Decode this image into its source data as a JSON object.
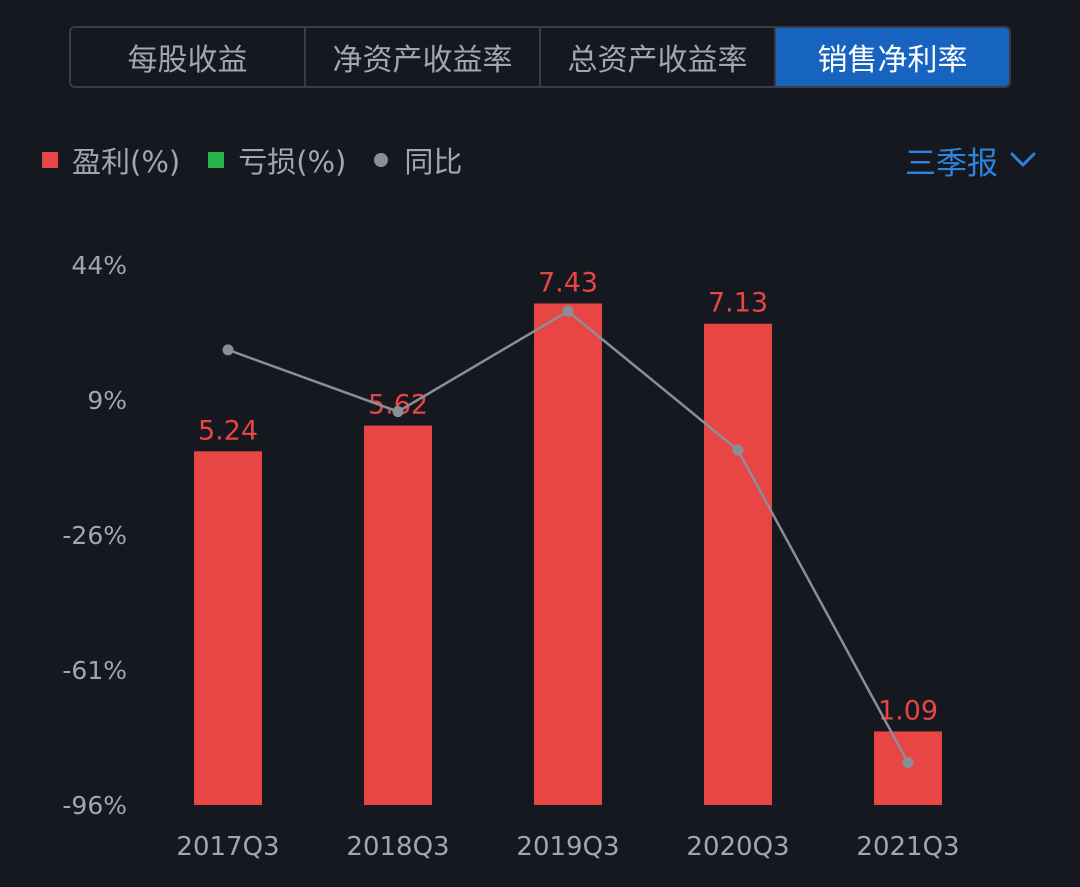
{
  "tabs": [
    {
      "label": "每股收益",
      "active": false
    },
    {
      "label": "净资产收益率",
      "active": false
    },
    {
      "label": "总资产收益率",
      "active": false
    },
    {
      "label": "销售净利率",
      "active": true
    }
  ],
  "legend": {
    "profit_label": "盈利(%)",
    "loss_label": "亏损(%)",
    "yoy_label": "同比"
  },
  "period_selector": {
    "label": "三季报",
    "icon": "chevron-down-icon"
  },
  "colors": {
    "profit": "#e84545",
    "loss": "#2bb34b",
    "yoy": "#8b8e96",
    "accent": "#1764c0"
  },
  "chart_data": {
    "type": "bar",
    "categories": [
      "2017Q3",
      "2018Q3",
      "2019Q3",
      "2020Q3",
      "2021Q3"
    ],
    "series": [
      {
        "name": "盈利(%)",
        "values": [
          5.24,
          5.62,
          7.43,
          7.13,
          1.09
        ],
        "labels": [
          "5.24",
          "5.62",
          "7.43",
          "7.13",
          "1.09"
        ]
      },
      {
        "name": "同比",
        "type": "line",
        "values": [
          22,
          6,
          32,
          -4,
          -85
        ]
      }
    ],
    "bar_ylim": [
      0,
      8
    ],
    "yoy_axis": {
      "ticks": [
        "44%",
        "9%",
        "-26%",
        "-61%",
        "-96%"
      ],
      "tick_values": [
        44,
        9,
        -26,
        -61,
        -96
      ],
      "ylim": [
        -96,
        44
      ]
    },
    "grid": false
  }
}
